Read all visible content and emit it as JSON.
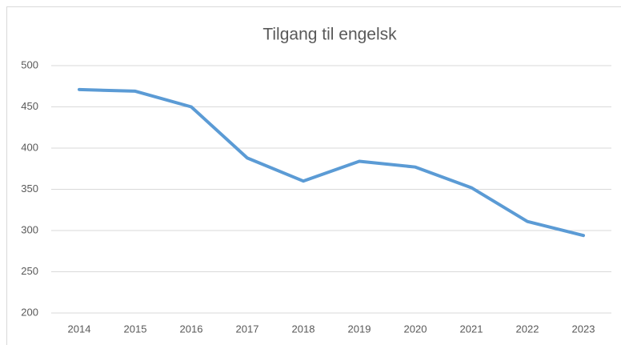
{
  "chart_data": {
    "type": "line",
    "title": "Tilgang til engelsk",
    "categories": [
      "2014",
      "2015",
      "2016",
      "2017",
      "2018",
      "2019",
      "2020",
      "2021",
      "2022",
      "2023"
    ],
    "values": [
      471,
      469,
      450,
      388,
      360,
      384,
      377,
      352,
      311,
      294
    ],
    "color": "#5b9bd5",
    "ylim": [
      200,
      500
    ],
    "yticks": [
      200,
      250,
      300,
      350,
      400,
      450,
      500
    ],
    "grid": true
  }
}
